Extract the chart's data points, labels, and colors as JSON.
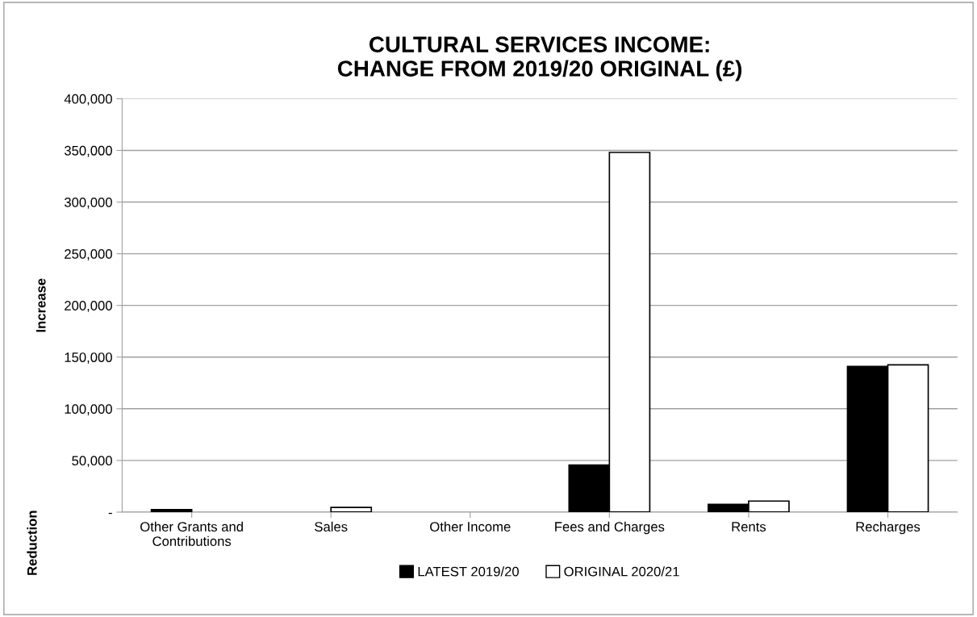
{
  "chart_data": {
    "type": "bar",
    "title": "CULTURAL SERVICES INCOME:\nCHANGE FROM 2019/20 ORIGINAL (£)",
    "ylabel": "Increase",
    "annotations": [
      "Reduction"
    ],
    "categories": [
      "Other Grants and\nContributions",
      "Sales",
      "Other Income",
      "Fees and Charges",
      "Rents",
      "Recharges"
    ],
    "series": [
      {
        "name": "LATEST 2019/20",
        "color": "#000000",
        "values": [
          2500,
          0,
          0,
          45500,
          7500,
          141000
        ]
      },
      {
        "name": "ORIGINAL 2020/21",
        "color": "#ffffff",
        "values": [
          0,
          4500,
          0,
          348000,
          10700,
          142500
        ]
      }
    ],
    "ylim": [
      0,
      400000
    ],
    "yticks": [
      {
        "value": 0,
        "label": "-"
      },
      {
        "value": 50000,
        "label": "50,000"
      },
      {
        "value": 100000,
        "label": "100,000"
      },
      {
        "value": 150000,
        "label": "150,000"
      },
      {
        "value": 200000,
        "label": "200,000"
      },
      {
        "value": 250000,
        "label": "250,000"
      },
      {
        "value": 300000,
        "label": "300,000"
      },
      {
        "value": 350000,
        "label": "350,000"
      },
      {
        "value": 400000,
        "label": "400,000"
      }
    ],
    "grid": "y",
    "legend": "bottom"
  }
}
